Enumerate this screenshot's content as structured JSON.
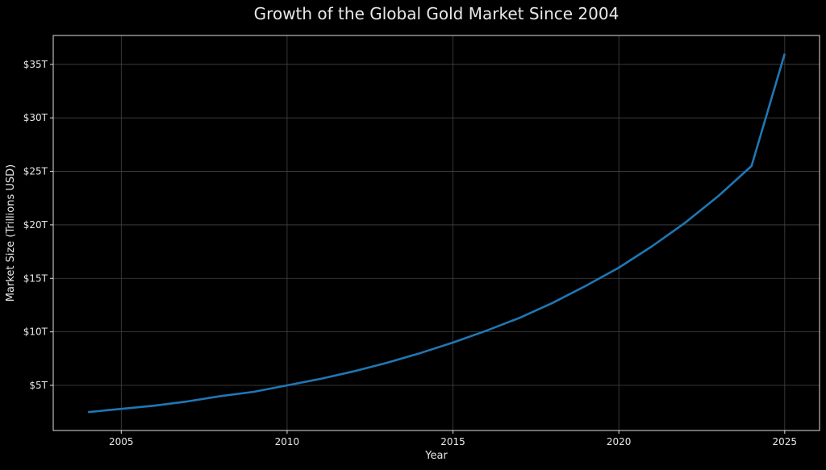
{
  "chart_data": {
    "type": "line",
    "title": "Growth of the Global Gold Market Since 2004",
    "xlabel": "Year",
    "ylabel": "Market Size (Trillions USD)",
    "x": [
      2004,
      2005,
      2006,
      2007,
      2008,
      2009,
      2010,
      2011,
      2012,
      2013,
      2014,
      2015,
      2016,
      2017,
      2018,
      2019,
      2020,
      2021,
      2022,
      2023,
      2024,
      2025
    ],
    "series": [
      {
        "values": [
          2.5,
          2.8,
          3.1,
          3.5,
          4.0,
          4.4,
          5.0,
          5.6,
          6.3,
          7.1,
          8.0,
          9.0,
          10.1,
          11.3,
          12.7,
          14.3,
          16.0,
          18.0,
          20.2,
          22.7,
          25.5,
          36.0
        ],
        "color": "#1f77b4"
      }
    ],
    "xlim": [
      2002.95,
      2026.05
    ],
    "ylim": [
      0.78,
      37.7
    ],
    "xticks": [
      2005,
      2010,
      2015,
      2020,
      2025
    ],
    "xtick_labels": [
      "2005",
      "2010",
      "2015",
      "2020",
      "2025"
    ],
    "yticks": [
      5,
      10,
      15,
      20,
      25,
      30,
      35
    ],
    "ytick_labels": [
      "$5T",
      "$10T",
      "$15T",
      "$20T",
      "$25T",
      "$30T",
      "$35T"
    ],
    "grid": true,
    "background": "#000000",
    "legend": "none"
  }
}
